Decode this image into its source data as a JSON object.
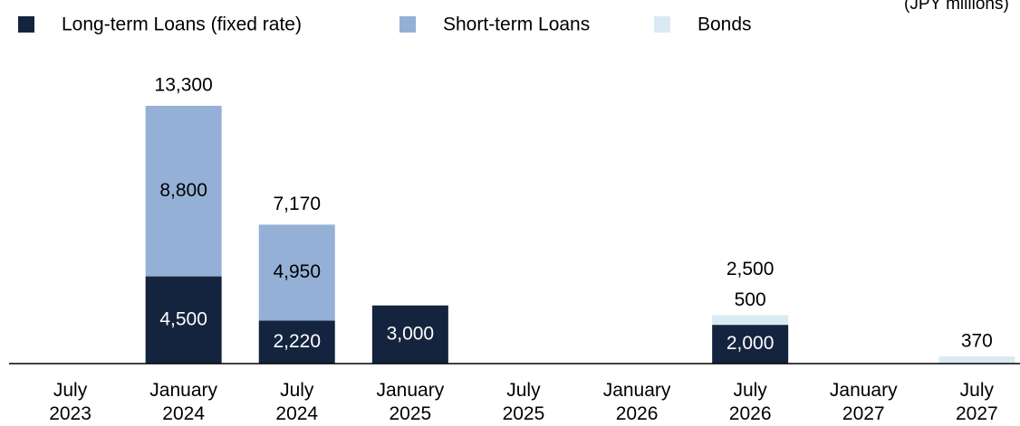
{
  "chart_data": {
    "type": "stacked_bar",
    "unit_note": "(JPY millions)",
    "categories": [
      "July\n2023",
      "January\n2024",
      "July\n2024",
      "January\n2025",
      "July\n2025",
      "January\n2026",
      "July\n2026",
      "January\n2027",
      "July\n2027"
    ],
    "series": [
      {
        "name": "Long-term Loans (fixed rate)",
        "color": "#14243f",
        "label_color": "#ffffff",
        "values": [
          null,
          4500,
          2220,
          3000,
          null,
          null,
          2000,
          null,
          null
        ],
        "value_labels": [
          null,
          "4,500",
          "2,220",
          "3,000",
          null,
          null,
          "2,000",
          null,
          null
        ]
      },
      {
        "name": "Short-term Loans",
        "color": "#94b0d6",
        "label_color": "#000000",
        "values": [
          null,
          8800,
          4950,
          null,
          null,
          null,
          null,
          null,
          null
        ],
        "value_labels": [
          null,
          "8,800",
          "4,950",
          null,
          null,
          null,
          null,
          null,
          null
        ]
      },
      {
        "name": "Bonds",
        "color": "#daeaf2",
        "label_color": "#000000",
        "values": [
          null,
          null,
          null,
          null,
          null,
          null,
          500,
          null,
          370
        ],
        "value_labels": [
          null,
          null,
          null,
          null,
          null,
          null,
          "500",
          null,
          "370"
        ]
      }
    ],
    "totals": [
      null,
      13300,
      7170,
      null,
      null,
      null,
      2500,
      null,
      null
    ],
    "total_labels": [
      null,
      "13,300",
      "7,170",
      null,
      null,
      null,
      "2,500",
      null,
      null
    ],
    "ylim": [
      0,
      14000
    ]
  }
}
